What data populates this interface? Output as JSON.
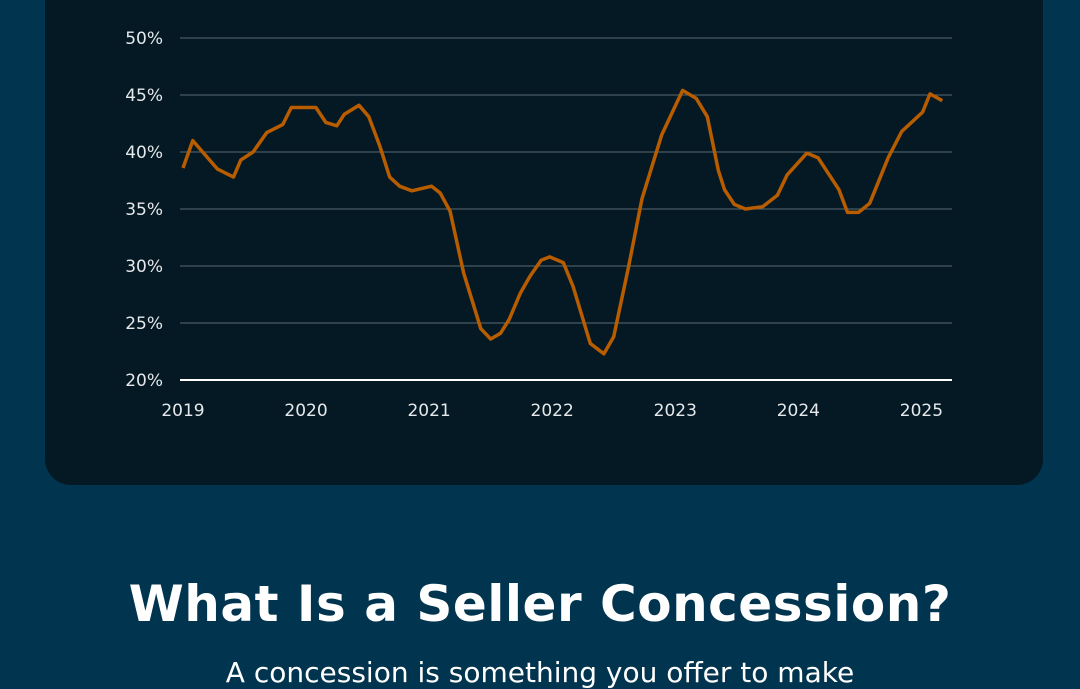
{
  "chart_data": {
    "type": "line",
    "title": "",
    "xlabel": "",
    "ylabel": "",
    "xlim": [
      2019,
      2025.2
    ],
    "ylim": [
      20,
      50
    ],
    "y_ticks": [
      20,
      25,
      30,
      35,
      40,
      45,
      50
    ],
    "y_tick_labels": [
      "20%",
      "25%",
      "30%",
      "35%",
      "40%",
      "45%",
      "50%"
    ],
    "x_ticks": [
      2019,
      2020,
      2021,
      2022,
      2023,
      2024,
      2025
    ],
    "x_tick_labels": [
      "2019",
      "2020",
      "2021",
      "2022",
      "2023",
      "2024",
      "2025"
    ],
    "grid": "horizontal",
    "line_color": "#b85c00",
    "series": [
      {
        "x": [
          2019.0,
          2019.08,
          2019.28,
          2019.41,
          2019.47,
          2019.57,
          2019.68,
          2019.81,
          2019.88,
          2020.08,
          2020.16,
          2020.25,
          2020.31,
          2020.43,
          2020.51,
          2020.6,
          2020.68,
          2020.76,
          2020.86,
          2021.02,
          2021.09,
          2021.17,
          2021.28,
          2021.42,
          2021.5,
          2021.58,
          2021.65,
          2021.74,
          2021.82,
          2021.91,
          2021.98,
          2022.09,
          2022.17,
          2022.31,
          2022.42,
          2022.5,
          2022.62,
          2022.73,
          2022.89,
          2023.06,
          2023.17,
          2023.26,
          2023.35,
          2023.4,
          2023.48,
          2023.57,
          2023.71,
          2023.83,
          2023.91,
          2024.07,
          2024.16,
          2024.33,
          2024.4,
          2024.49,
          2024.58,
          2024.73,
          2024.84,
          2025.01,
          2025.07,
          2025.17
        ],
        "y": [
          38.6,
          41.0,
          38.5,
          37.8,
          39.3,
          40.0,
          41.7,
          42.4,
          43.9,
          43.9,
          42.6,
          42.3,
          43.3,
          44.1,
          43.1,
          40.5,
          37.8,
          37.0,
          36.6,
          37.0,
          36.4,
          34.8,
          29.4,
          24.5,
          23.6,
          24.1,
          25.3,
          27.6,
          29.1,
          30.5,
          30.8,
          30.3,
          28.2,
          23.2,
          22.3,
          23.8,
          29.9,
          35.9,
          41.5,
          45.4,
          44.7,
          43.1,
          38.4,
          36.7,
          35.4,
          35.0,
          35.2,
          36.2,
          38.0,
          39.9,
          39.5,
          36.7,
          34.7,
          34.7,
          35.5,
          39.5,
          41.8,
          43.5,
          45.1,
          44.5
        ]
      }
    ]
  },
  "heading": "What Is a Seller Concession?",
  "subtext": "A concession is something you offer to make"
}
